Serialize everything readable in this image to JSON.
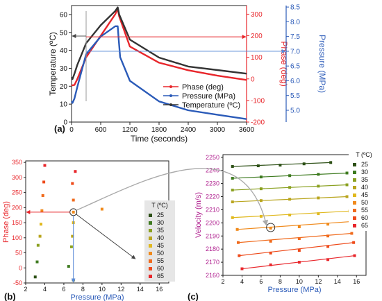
{
  "chart_data": [
    {
      "panel_label": "(a)",
      "type": "line",
      "xlabel": "Time (seconds)",
      "xlim": [
        0,
        3600
      ],
      "x_ticks": [
        "0",
        "600",
        "1200",
        "1800",
        "2400",
        "3000",
        "3600"
      ],
      "y_axes": [
        {
          "label": "Temperature (ºC)",
          "side": "left",
          "ylim": [
            0,
            65
          ],
          "ticks": [
            "0",
            "10",
            "20",
            "30",
            "40",
            "50",
            "60"
          ],
          "color": "#222222"
        },
        {
          "label": "Phase (deg)",
          "side": "right",
          "ylim": [
            -200,
            340
          ],
          "ticks": [
            "-200",
            "-100",
            "0",
            "100",
            "200",
            "300"
          ],
          "color": "#e8262b"
        },
        {
          "label": "Pressure (MPa)",
          "side": "far-right",
          "ylim": [
            4.6,
            8.55
          ],
          "ticks": [
            "5.0",
            "5.5",
            "6.0",
            "6.5",
            "7.0",
            "7.5",
            "8.0",
            "8.5"
          ],
          "color": "#2a5ab8"
        }
      ],
      "legend": {
        "placement": "center-right"
      },
      "series": [
        {
          "name": "Phase (deg)",
          "axis": "Phase (deg)",
          "color": "#e8262b",
          "x": [
            0,
            20,
            60,
            120,
            300,
            600,
            900,
            950,
            980,
            1200,
            1800,
            2400,
            3000,
            3600
          ],
          "y": [
            -28,
            -30,
            -28,
            0,
            100,
            200,
            300,
            325,
            290,
            150,
            75,
            40,
            15,
            -5
          ]
        },
        {
          "name": "Pressure (MPa)",
          "axis": "Pressure (MPa)",
          "color": "#2a5ab8",
          "x": [
            0,
            20,
            60,
            120,
            300,
            600,
            900,
            950,
            970,
            1000,
            1200,
            1800,
            2400,
            3000,
            3600
          ],
          "y": [
            5.3,
            5.25,
            5.4,
            5.8,
            6.9,
            7.5,
            7.85,
            7.85,
            7.4,
            6.8,
            6.0,
            5.3,
            5.0,
            4.85,
            4.7
          ]
        },
        {
          "name": "Temperature (ºC)",
          "axis": "Temperature (ºC)",
          "color": "#333333",
          "x": [
            0,
            20,
            60,
            120,
            300,
            600,
            900,
            950,
            980,
            1200,
            1800,
            2400,
            3000,
            3600
          ],
          "y": [
            25,
            24,
            27,
            32,
            44,
            54,
            62,
            64,
            60,
            46,
            36,
            31,
            29,
            27
          ]
        }
      ]
    },
    {
      "panel_label": "(b)",
      "type": "scatter",
      "xlabel": "Pressure (MPa)",
      "ylabel": "Phase (deg)",
      "xlim": [
        2,
        17
      ],
      "ylim": [
        -50,
        355
      ],
      "x_ticks": [
        "2",
        "4",
        "6",
        "8",
        "10",
        "12",
        "14",
        "16"
      ],
      "y_ticks": [
        "-50",
        "0",
        "50",
        "100",
        "150",
        "200",
        "250",
        "300",
        "350"
      ],
      "legend": {
        "title": "T (ºC)",
        "placement": "right"
      },
      "series": [
        {
          "name": "25",
          "color": "#2d5016",
          "x": [
            3.0,
            7.0
          ],
          "y": [
            -30,
            -40
          ]
        },
        {
          "name": "30",
          "color": "#3d7a1f",
          "x": [
            3.2,
            6.5
          ],
          "y": [
            20,
            5
          ]
        },
        {
          "name": "35",
          "color": "#8aa020",
          "x": [
            3.3,
            6.8
          ],
          "y": [
            75,
            70
          ]
        },
        {
          "name": "40",
          "color": "#b9a51e",
          "x": [
            3.5,
            6.9
          ],
          "y": [
            105,
            105
          ]
        },
        {
          "name": "45",
          "color": "#e0b81d",
          "x": [
            3.6,
            7.0
          ],
          "y": [
            145,
            150
          ]
        },
        {
          "name": "50",
          "color": "#f08a1c",
          "x": [
            3.7,
            7.0,
            10.0
          ],
          "y": [
            190,
            185,
            195
          ]
        },
        {
          "name": "55",
          "color": "#f06a1c",
          "x": [
            3.8,
            7.0
          ],
          "y": [
            240,
            225
          ]
        },
        {
          "name": "60",
          "color": "#ee4a1a",
          "x": [
            3.9,
            6.9
          ],
          "y": [
            285,
            280
          ]
        },
        {
          "name": "65",
          "color": "#e8262b",
          "x": [
            4.0,
            7.2
          ],
          "y": [
            340,
            320
          ]
        }
      ]
    },
    {
      "panel_label": "(c)",
      "type": "scatter",
      "xlabel": "Pressure (MPa)",
      "ylabel": "Velocity (m/s)",
      "xlim": [
        2,
        17
      ],
      "ylim": [
        2160,
        2252
      ],
      "x_ticks": [
        "2",
        "4",
        "6",
        "8",
        "10",
        "12",
        "14",
        "16"
      ],
      "y_ticks": [
        "2160",
        "2170",
        "2180",
        "2190",
        "2200",
        "2210",
        "2220",
        "2230",
        "2240",
        "2250"
      ],
      "legend": {
        "title": "T (ºC)",
        "placement": "right"
      },
      "series": [
        {
          "name": "25",
          "color": "#2d5016",
          "x": [
            3,
            5.7,
            8,
            10.5,
            13.3
          ],
          "y": [
            2243,
            2243.5,
            2244,
            2245,
            2246
          ]
        },
        {
          "name": "30",
          "color": "#3d7a1f",
          "x": [
            3,
            6,
            9,
            12,
            15
          ],
          "y": [
            2234,
            2235,
            2236,
            2237,
            2238
          ]
        },
        {
          "name": "35",
          "color": "#8aa020",
          "x": [
            3,
            6,
            9,
            12,
            15
          ],
          "y": [
            2225,
            2226,
            2227,
            2228,
            2229
          ]
        },
        {
          "name": "40",
          "color": "#b9a51e",
          "x": [
            3,
            6,
            9,
            12,
            15
          ],
          "y": [
            2216,
            2217,
            2218,
            2219,
            2220
          ]
        },
        {
          "name": "45",
          "color": "#e0b81d",
          "x": [
            3,
            6,
            9,
            12,
            15.3
          ],
          "y": [
            2204,
            2205,
            2206,
            2207,
            2209
          ]
        },
        {
          "name": "50",
          "color": "#f08a1c",
          "x": [
            3.5,
            7,
            10,
            13,
            15.5
          ],
          "y": [
            2195,
            2196,
            2197,
            2199,
            2201
          ]
        },
        {
          "name": "55",
          "color": "#f06a1c",
          "x": [
            3.6,
            7,
            10,
            13,
            15.5
          ],
          "y": [
            2185,
            2186,
            2188,
            2190,
            2192
          ]
        },
        {
          "name": "60",
          "color": "#ee4a1a",
          "x": [
            3.7,
            7,
            10,
            13,
            15.7
          ],
          "y": [
            2175,
            2177,
            2179,
            2182,
            2185
          ]
        },
        {
          "name": "65",
          "color": "#e8262b",
          "x": [
            4,
            7,
            10,
            13,
            15.8
          ],
          "y": [
            2165,
            2168,
            2170,
            2172,
            2175
          ]
        }
      ]
    }
  ]
}
